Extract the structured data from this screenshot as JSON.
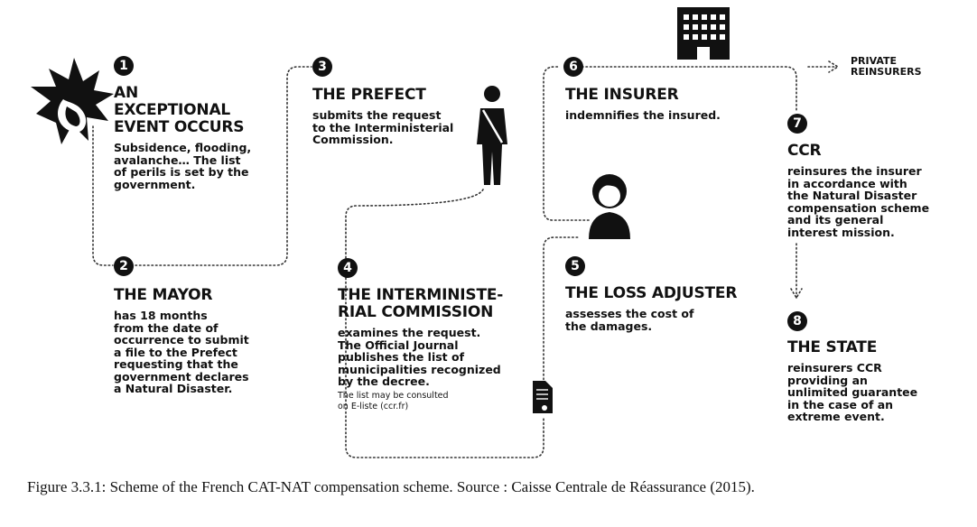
{
  "steps": [
    {
      "number": "1",
      "title": "AN\nEXCEPTIONAL\nEVENT OCCURS",
      "desc": "Subsidence, flooding,\navalanche… The list\nof perils is set by the\ngovernment."
    },
    {
      "number": "2",
      "title": "THE MAYOR",
      "desc": "has 18 months\nfrom the date of\noccurrence to submit\na file to the Prefect\nrequesting that the\ngovernment declares\na Natural Disaster."
    },
    {
      "number": "3",
      "title": "THE PREFECT",
      "desc": "submits the request\nto the Interministerial\nCommission."
    },
    {
      "number": "4",
      "title": "THE INTERMINISTE-\nRIAL COMMISSION",
      "desc": "examines the request.\nThe Official Journal\npublishes the list of\nmunicipalities recognized\nby the decree.",
      "note": "The list may be consulted\non E-liste (ccr.fr)"
    },
    {
      "number": "5",
      "title": "THE LOSS ADJUSTER",
      "desc": "assesses the cost of\nthe damages."
    },
    {
      "number": "6",
      "title": "THE INSURER",
      "desc": "indemnifies the insured."
    },
    {
      "number": "7",
      "title": "CCR",
      "desc": "reinsures the insurer\nin accordance with\nthe Natural Disaster\ncompensation scheme\nand its general\ninterest mission."
    },
    {
      "number": "8",
      "title": "THE STATE",
      "desc": "reinsurers CCR\nproviding an\nunlimited guarantee\nin the case of an\nextreme event."
    }
  ],
  "private_reinsurers": "PRIVATE\nREINSURERS",
  "icons": [
    "burst-icon",
    "prefect-person-icon",
    "building-icon",
    "adjuster-person-icon",
    "document-icon"
  ],
  "caption": "Figure 3.3.1: Scheme of the French CAT-NAT compensation scheme. Source : Caisse Centrale de Réassurance (2015)."
}
